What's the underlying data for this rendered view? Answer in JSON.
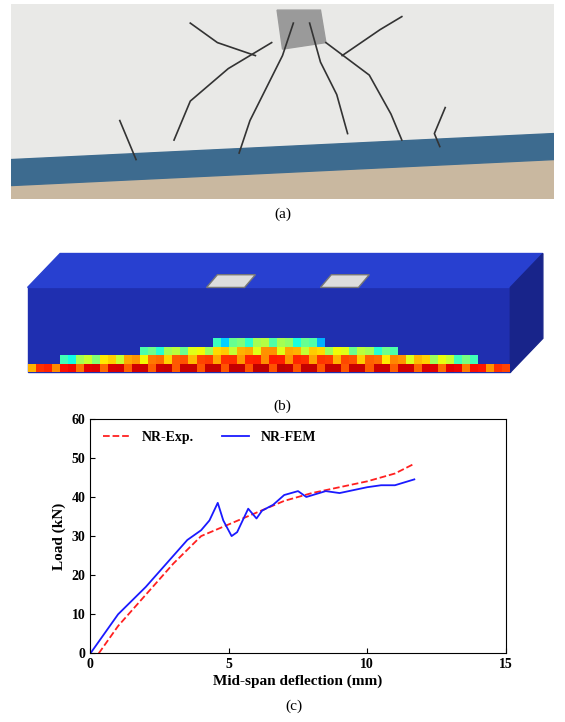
{
  "panel_labels": [
    "(a)",
    "(b)",
    "(c)"
  ],
  "chart_data": {
    "type": "line",
    "x_label": "Mid-span deflection (mm)",
    "y_label": "Load (kN)",
    "xlim": [
      0,
      15
    ],
    "xticks": [
      0,
      5,
      10,
      15
    ],
    "ylim": [
      0,
      60
    ],
    "yticks": [
      0,
      10,
      20,
      30,
      40,
      50,
      60
    ],
    "legend": "upper left",
    "series": [
      {
        "name": "NR-Exp.",
        "color": "#ff2020",
        "line_style": "dashed",
        "x": [
          0.3,
          1,
          2,
          3,
          4,
          5,
          6,
          7,
          8,
          9,
          10,
          11,
          11.7
        ],
        "values": [
          0,
          7,
          15,
          23,
          30,
          33,
          36,
          39,
          41,
          42.5,
          44,
          46,
          48.5
        ]
      },
      {
        "name": "NR-FEM",
        "color": "#1a1aff",
        "line_style": "solid",
        "x": [
          0,
          0.5,
          1,
          2,
          3,
          3.5,
          4,
          4.3,
          4.6,
          4.8,
          5.1,
          5.3,
          5.7,
          6,
          6.2,
          6.6,
          7,
          7.5,
          7.8,
          8.5,
          9,
          10,
          10.5,
          11,
          11.7
        ],
        "values": [
          0,
          5,
          10,
          17,
          25,
          29,
          31.5,
          34,
          38.5,
          34,
          30,
          31,
          37,
          34.5,
          36.5,
          38,
          40.5,
          41.5,
          40,
          41.5,
          41,
          42.5,
          43,
          43,
          44.5
        ]
      }
    ]
  }
}
